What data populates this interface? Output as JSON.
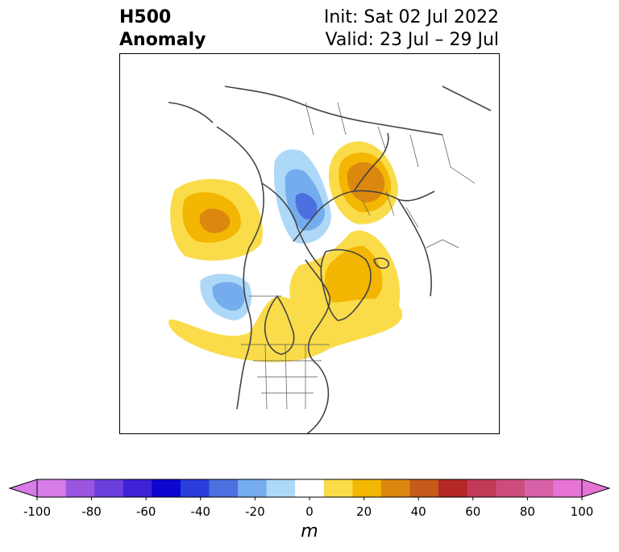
{
  "title": {
    "left_line1": "H500",
    "left_line2": "Anomaly",
    "init": "Init: Sat 02 Jul 2022",
    "valid": "Valid: 23 Jul – 29 Jul"
  },
  "map": {
    "projection": "north polar stereographic",
    "region": "North America / Arctic / Northern Eurasia",
    "features": [
      {
        "name": "positive anomaly NE Pacific/Aleutians",
        "value_range": "10-40 m"
      },
      {
        "name": "negative anomaly Gulf of Alaska",
        "value_range": "-10 to -30 m"
      },
      {
        "name": "negative anomaly Arctic Ocean",
        "value_range": "-10 to -40 m"
      },
      {
        "name": "positive anomaly Scandinavia/NW Russia",
        "value_range": "10-50 m"
      },
      {
        "name": "positive anomaly Greenland/Baffin",
        "value_range": "10-30 m"
      },
      {
        "name": "positive anomaly Central North America",
        "value_range": "10-20 m"
      }
    ]
  },
  "colorbar": {
    "levels": [
      -100,
      -90,
      -80,
      -70,
      -60,
      -50,
      -40,
      -30,
      -20,
      -10,
      10,
      20,
      30,
      40,
      50,
      60,
      70,
      80,
      90,
      100
    ],
    "colors": [
      "#d77ce8",
      "#9b55e0",
      "#6a3fdc",
      "#3f22d8",
      "#0d05d0",
      "#2a3ddc",
      "#4d70e0",
      "#74acee",
      "#aed8f7",
      "#ffffff",
      "#fadc4a",
      "#f2b603",
      "#dc880f",
      "#c65a1a",
      "#b52826",
      "#c23a57",
      "#cc4c7c",
      "#d762a7",
      "#e574d5"
    ],
    "over_color": "#e574d5",
    "under_color": "#d77ce8",
    "tick_labels": [
      "-100",
      "-80",
      "-60",
      "-40",
      "-20",
      "0",
      "20",
      "40",
      "60",
      "80",
      "100"
    ],
    "unit": "m"
  }
}
